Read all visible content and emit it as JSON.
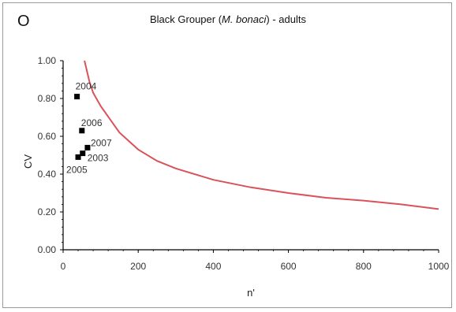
{
  "panel_letter": "O",
  "title": {
    "prefix": "Black Grouper (",
    "italic": "M. bonaci",
    "suffix": ") - adults"
  },
  "chart_data": {
    "type": "scatter",
    "xlabel": "n'",
    "ylabel": "CV",
    "xlim": [
      0,
      1000
    ],
    "ylim": [
      0,
      1.0
    ],
    "xticks": [
      0,
      200,
      400,
      600,
      800,
      1000
    ],
    "xtick_labels": [
      "0",
      "200",
      "400",
      "600",
      "800",
      "1000"
    ],
    "yticks": [
      0,
      0.2,
      0.4,
      0.6,
      0.8,
      1.0
    ],
    "ytick_labels": [
      "0.00",
      "0.20",
      "0.40",
      "0.60",
      "0.80",
      "1.00"
    ],
    "grid": false,
    "points": [
      {
        "label": "2004",
        "x": 37,
        "y": 0.81
      },
      {
        "label": "2006",
        "x": 50,
        "y": 0.63
      },
      {
        "label": "2007",
        "x": 65,
        "y": 0.54
      },
      {
        "label": "2003",
        "x": 52,
        "y": 0.51
      },
      {
        "label": "2005",
        "x": 40,
        "y": 0.49
      }
    ],
    "curve": {
      "color": "#d9535a",
      "x": [
        57,
        70,
        80,
        100,
        125,
        150,
        200,
        250,
        300,
        400,
        500,
        600,
        700,
        800,
        900,
        1000
      ],
      "y": [
        1.0,
        0.89,
        0.83,
        0.76,
        0.69,
        0.62,
        0.53,
        0.47,
        0.43,
        0.37,
        0.33,
        0.3,
        0.275,
        0.26,
        0.24,
        0.215
      ]
    },
    "colors": {
      "points": "#000000",
      "axis": "#000000"
    }
  }
}
